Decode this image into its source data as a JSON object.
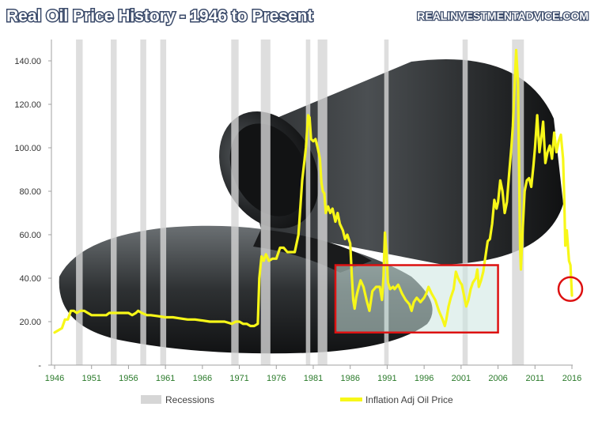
{
  "chart_data": {
    "type": "line",
    "title": "Real Oil Price History - 1946 to Present",
    "source_label": "REALINVESTMENTADVICE.COM",
    "xlabel": "",
    "ylabel": "",
    "xlim": [
      1946,
      2016
    ],
    "ylim": [
      0,
      150
    ],
    "x_ticks": [
      1946,
      1951,
      1956,
      1961,
      1966,
      1971,
      1976,
      1981,
      1986,
      1991,
      1996,
      2001,
      2006,
      2011,
      2016
    ],
    "y_ticks": [
      {
        "value": 0,
        "label": "-"
      },
      {
        "value": 20,
        "label": "20.00"
      },
      {
        "value": 40,
        "label": "40.00"
      },
      {
        "value": 60,
        "label": "60.00"
      },
      {
        "value": 80,
        "label": "80.00"
      },
      {
        "value": 100,
        "label": "100.00"
      },
      {
        "value": 120,
        "label": "120.00"
      },
      {
        "value": 140,
        "label": "140.00"
      }
    ],
    "grid": false,
    "legend_position": "bottom",
    "recessions": [
      [
        1948.9,
        1949.8
      ],
      [
        1953.6,
        1954.4
      ],
      [
        1957.6,
        1958.4
      ],
      [
        1960.3,
        1961.1
      ],
      [
        1969.9,
        1970.9
      ],
      [
        1973.9,
        1975.2
      ],
      [
        1980.0,
        1980.6
      ],
      [
        1981.6,
        1982.9
      ],
      [
        1990.6,
        1991.2
      ],
      [
        2001.2,
        2001.9
      ],
      [
        2007.9,
        2009.5
      ]
    ],
    "series": [
      {
        "name": "Inflation Adj Oil Price",
        "color": "#f7f718",
        "points": [
          [
            1946.0,
            15
          ],
          [
            1946.5,
            16
          ],
          [
            1947.0,
            17
          ],
          [
            1947.4,
            21
          ],
          [
            1947.8,
            21
          ],
          [
            1948.2,
            25
          ],
          [
            1948.6,
            25
          ],
          [
            1949.0,
            24
          ],
          [
            1949.5,
            25
          ],
          [
            1950.0,
            25
          ],
          [
            1950.5,
            24
          ],
          [
            1951.0,
            23
          ],
          [
            1952.0,
            23
          ],
          [
            1953.0,
            23
          ],
          [
            1953.4,
            24
          ],
          [
            1954.0,
            24
          ],
          [
            1955.0,
            24
          ],
          [
            1956.0,
            24
          ],
          [
            1956.5,
            23
          ],
          [
            1957.0,
            24
          ],
          [
            1957.3,
            25
          ],
          [
            1957.8,
            24
          ],
          [
            1958.5,
            23
          ],
          [
            1959.0,
            23
          ],
          [
            1960.0,
            22.5
          ],
          [
            1961.0,
            22
          ],
          [
            1962.0,
            22
          ],
          [
            1963.0,
            21.5
          ],
          [
            1964.0,
            21
          ],
          [
            1965.0,
            21
          ],
          [
            1966.0,
            20.5
          ],
          [
            1967.0,
            20
          ],
          [
            1968.0,
            20
          ],
          [
            1969.0,
            20
          ],
          [
            1969.5,
            19.5
          ],
          [
            1970.0,
            19
          ],
          [
            1970.5,
            20
          ],
          [
            1971.0,
            20
          ],
          [
            1971.5,
            19
          ],
          [
            1972.0,
            19
          ],
          [
            1972.5,
            18
          ],
          [
            1973.0,
            18
          ],
          [
            1973.5,
            19
          ],
          [
            1973.7,
            40
          ],
          [
            1974.0,
            50
          ],
          [
            1974.3,
            48
          ],
          [
            1974.6,
            51
          ],
          [
            1975.0,
            48
          ],
          [
            1975.5,
            49
          ],
          [
            1976.0,
            49
          ],
          [
            1976.5,
            54
          ],
          [
            1977.0,
            54
          ],
          [
            1977.5,
            52
          ],
          [
            1978.0,
            52
          ],
          [
            1978.5,
            52
          ],
          [
            1979.0,
            60
          ],
          [
            1979.5,
            85
          ],
          [
            1980.0,
            100
          ],
          [
            1980.3,
            115
          ],
          [
            1980.5,
            114
          ],
          [
            1980.7,
            104
          ],
          [
            1981.0,
            103
          ],
          [
            1981.3,
            104
          ],
          [
            1981.6,
            100
          ],
          [
            1981.9,
            95
          ],
          [
            1982.1,
            84
          ],
          [
            1982.3,
            80
          ],
          [
            1982.5,
            79
          ],
          [
            1982.7,
            70
          ],
          [
            1983.0,
            73
          ],
          [
            1983.3,
            70
          ],
          [
            1983.6,
            72
          ],
          [
            1984.0,
            66
          ],
          [
            1984.3,
            70
          ],
          [
            1984.6,
            65
          ],
          [
            1985.0,
            62
          ],
          [
            1985.3,
            58
          ],
          [
            1985.6,
            60
          ],
          [
            1986.0,
            56
          ],
          [
            1986.2,
            42
          ],
          [
            1986.4,
            30
          ],
          [
            1986.6,
            26
          ],
          [
            1986.8,
            31
          ],
          [
            1987.0,
            34
          ],
          [
            1987.4,
            39
          ],
          [
            1987.8,
            36
          ],
          [
            1988.2,
            30
          ],
          [
            1988.6,
            25
          ],
          [
            1989.0,
            34
          ],
          [
            1989.5,
            36
          ],
          [
            1990.0,
            36
          ],
          [
            1990.3,
            30
          ],
          [
            1990.5,
            41
          ],
          [
            1990.7,
            61
          ],
          [
            1990.9,
            52
          ],
          [
            1991.1,
            38
          ],
          [
            1991.4,
            35
          ],
          [
            1991.8,
            36
          ],
          [
            1992.0,
            35
          ],
          [
            1992.5,
            37
          ],
          [
            1993.0,
            33
          ],
          [
            1993.5,
            30
          ],
          [
            1994.0,
            28
          ],
          [
            1994.3,
            25
          ],
          [
            1994.6,
            29
          ],
          [
            1995.0,
            31
          ],
          [
            1995.5,
            29
          ],
          [
            1996.0,
            31
          ],
          [
            1996.3,
            33
          ],
          [
            1996.6,
            36
          ],
          [
            1997.0,
            33
          ],
          [
            1997.5,
            30
          ],
          [
            1998.0,
            25
          ],
          [
            1998.5,
            21
          ],
          [
            1998.8,
            18
          ],
          [
            1999.0,
            21
          ],
          [
            1999.3,
            27
          ],
          [
            1999.6,
            31
          ],
          [
            2000.0,
            35
          ],
          [
            2000.3,
            43
          ],
          [
            2000.6,
            40
          ],
          [
            2000.9,
            38
          ],
          [
            2001.1,
            37
          ],
          [
            2001.4,
            32
          ],
          [
            2001.7,
            27
          ],
          [
            2002.0,
            30
          ],
          [
            2002.3,
            35
          ],
          [
            2002.6,
            38
          ],
          [
            2003.0,
            40
          ],
          [
            2003.2,
            44
          ],
          [
            2003.4,
            36
          ],
          [
            2003.7,
            39
          ],
          [
            2004.0,
            43
          ],
          [
            2004.3,
            50
          ],
          [
            2004.6,
            57
          ],
          [
            2004.9,
            58
          ],
          [
            2005.2,
            65
          ],
          [
            2005.5,
            76
          ],
          [
            2005.8,
            72
          ],
          [
            2006.0,
            75
          ],
          [
            2006.3,
            85
          ],
          [
            2006.6,
            80
          ],
          [
            2006.9,
            70
          ],
          [
            2007.2,
            75
          ],
          [
            2007.5,
            88
          ],
          [
            2007.8,
            100
          ],
          [
            2008.0,
            110
          ],
          [
            2008.2,
            125
          ],
          [
            2008.45,
            145
          ],
          [
            2008.7,
            130
          ],
          [
            2008.85,
            90
          ],
          [
            2008.98,
            55
          ],
          [
            2009.1,
            44
          ],
          [
            2009.3,
            60
          ],
          [
            2009.6,
            80
          ],
          [
            2009.9,
            85
          ],
          [
            2010.2,
            86
          ],
          [
            2010.5,
            82
          ],
          [
            2010.8,
            92
          ],
          [
            2011.0,
            100
          ],
          [
            2011.3,
            115
          ],
          [
            2011.6,
            98
          ],
          [
            2011.9,
            106
          ],
          [
            2012.1,
            112
          ],
          [
            2012.4,
            93
          ],
          [
            2012.7,
            98
          ],
          [
            2013.0,
            101
          ],
          [
            2013.3,
            95
          ],
          [
            2013.6,
            107
          ],
          [
            2013.9,
            98
          ],
          [
            2014.2,
            103
          ],
          [
            2014.5,
            106
          ],
          [
            2014.8,
            95
          ],
          [
            2014.95,
            78
          ],
          [
            2015.1,
            55
          ],
          [
            2015.3,
            62
          ],
          [
            2015.6,
            48
          ],
          [
            2015.8,
            46
          ],
          [
            2016.0,
            32
          ]
        ]
      }
    ],
    "annotations": [
      {
        "type": "rect",
        "x0": 1984.0,
        "x1": 2006.0,
        "y0": 15,
        "y1": 46,
        "stroke": "#dd1111",
        "fill": "#cce6e0"
      },
      {
        "type": "circle",
        "x": 2016.0,
        "y": 35,
        "stroke": "#dd1111"
      }
    ],
    "legend": [
      {
        "label": "Recessions",
        "color": "#d6d6d6"
      },
      {
        "label": "Inflation Adj Oil Price",
        "color": "#f7f718"
      }
    ]
  }
}
